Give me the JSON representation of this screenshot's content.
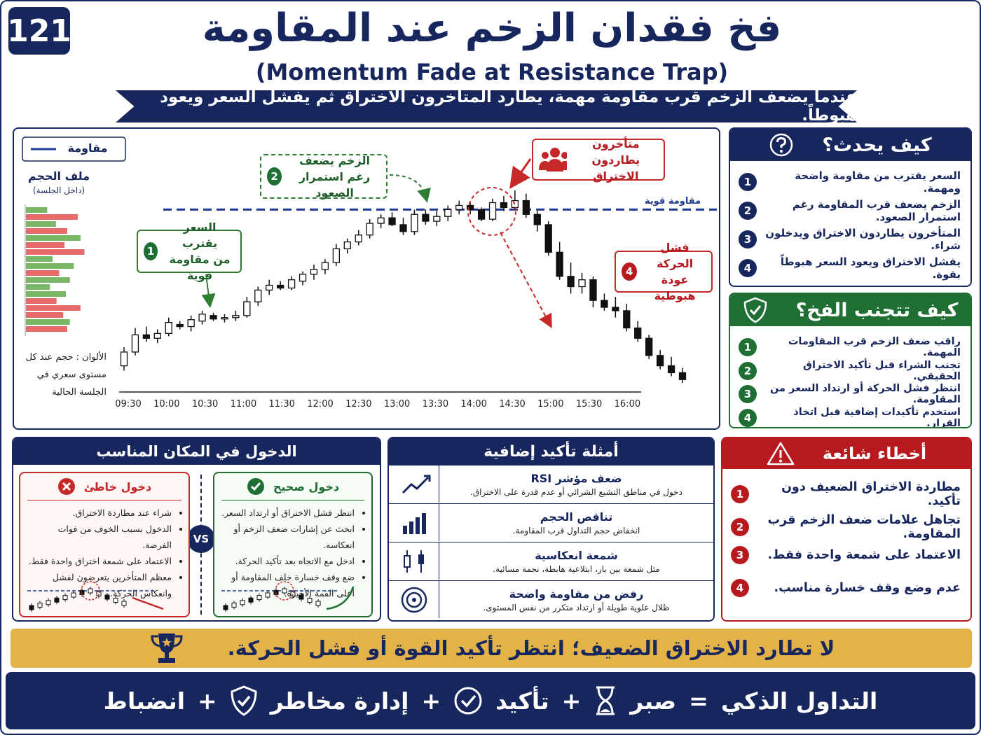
{
  "header": {
    "badge": "121",
    "title": "فخ فقدان الزخم عند المقاومة",
    "subtitle": "(Momentum Fade at Resistance Trap)",
    "ribbon": "عندما يضعف الزخم قرب مقاومة مهمة، يطارد المتأخرون الاختراق ثم يفشل السعر ويعود هبوطاً."
  },
  "chart": {
    "legend": "مقاومة",
    "volume_title": "ملف الحجم",
    "volume_subtitle": "(داخل الجلسة)",
    "colors_note": "الألوان : حجم عند كل مستوى سعري في الجلسة الحالية",
    "resistance_label": "مقاومة قوية",
    "resistance": 262,
    "ylim": [
      0,
      300
    ],
    "x_labels": [
      "09:30",
      "10:00",
      "10:30",
      "11:00",
      "11:30",
      "12:00",
      "12:30",
      "13:00",
      "13:30",
      "14:00",
      "14:30",
      "15:00",
      "15:30",
      "16:00"
    ],
    "candles": [
      [
        35,
        62,
        28,
        55
      ],
      [
        55,
        90,
        50,
        80
      ],
      [
        80,
        92,
        70,
        75
      ],
      [
        75,
        88,
        68,
        82
      ],
      [
        82,
        105,
        78,
        98
      ],
      [
        95,
        100,
        88,
        92
      ],
      [
        92,
        108,
        85,
        102
      ],
      [
        100,
        115,
        95,
        110
      ],
      [
        108,
        112,
        100,
        103
      ],
      [
        103,
        110,
        98,
        105
      ],
      [
        105,
        115,
        100,
        108
      ],
      [
        108,
        135,
        105,
        128
      ],
      [
        128,
        150,
        122,
        145
      ],
      [
        145,
        160,
        138,
        152
      ],
      [
        152,
        158,
        145,
        148
      ],
      [
        148,
        165,
        145,
        160
      ],
      [
        158,
        172,
        152,
        168
      ],
      [
        168,
        182,
        160,
        175
      ],
      [
        175,
        190,
        168,
        185
      ],
      [
        185,
        212,
        180,
        205
      ],
      [
        205,
        220,
        198,
        215
      ],
      [
        215,
        232,
        210,
        225
      ],
      [
        225,
        248,
        220,
        242
      ],
      [
        242,
        255,
        235,
        250
      ],
      [
        250,
        258,
        238,
        240
      ],
      [
        240,
        250,
        225,
        230
      ],
      [
        230,
        262,
        225,
        255
      ],
      [
        255,
        262,
        240,
        245
      ],
      [
        245,
        260,
        238,
        252
      ],
      [
        252,
        268,
        245,
        262
      ],
      [
        262,
        275,
        255,
        268
      ],
      [
        268,
        272,
        255,
        262
      ],
      [
        262,
        265,
        245,
        248
      ],
      [
        248,
        278,
        245,
        272
      ],
      [
        272,
        282,
        260,
        265
      ],
      [
        265,
        290,
        262,
        275
      ],
      [
        275,
        285,
        250,
        255
      ],
      [
        255,
        260,
        230,
        240
      ],
      [
        240,
        245,
        195,
        200
      ],
      [
        200,
        215,
        160,
        165
      ],
      [
        165,
        185,
        140,
        150
      ],
      [
        150,
        170,
        140,
        160
      ],
      [
        160,
        165,
        120,
        130
      ],
      [
        130,
        140,
        115,
        120
      ],
      [
        120,
        135,
        105,
        115
      ],
      [
        115,
        125,
        85,
        90
      ],
      [
        90,
        100,
        70,
        75
      ],
      [
        75,
        80,
        45,
        50
      ],
      [
        50,
        58,
        30,
        35
      ],
      [
        35,
        48,
        20,
        25
      ],
      [
        25,
        32,
        10,
        15
      ]
    ],
    "volume_profile": {
      "values": [
        32,
        78,
        45,
        62,
        82,
        58,
        88,
        40,
        72,
        50,
        66,
        36,
        60,
        46,
        82,
        56,
        66,
        62
      ],
      "colors": [
        "#7ab868",
        "#e86a6a",
        "#7ab868",
        "#e86a6a",
        "#7ab868",
        "#e86a6a",
        "#e86a6a",
        "#7ab868",
        "#7ab868",
        "#e86a6a",
        "#7ab868",
        "#7ab868",
        "#7ab868",
        "#e86a6a",
        "#e86a6a",
        "#e86a6a",
        "#7ab868",
        "#e86a6a"
      ]
    },
    "callouts": [
      {
        "num": 1,
        "lines": [
          "السعر يقترب",
          "من مقاومة قوية"
        ]
      },
      {
        "num": 2,
        "lines": [
          "الزخم يضعف",
          "رغم استمرار الصعود"
        ]
      },
      {
        "lines": [
          "متأخرون",
          "يطاردون الاختراق"
        ]
      },
      {
        "num": 4,
        "lines": [
          "فشل الحركة",
          "عودة هبوطية"
        ]
      }
    ]
  },
  "how": {
    "title": "كيف يحدث؟",
    "items": [
      {
        "num": 1,
        "text": "السعر يقترب من مقاومة واضحة ومهمة."
      },
      {
        "num": 2,
        "text": "الزخم يضعف قرب المقاومة رغم استمرار الصعود."
      },
      {
        "num": 3,
        "text": "المتأخرون يطاردون الاختراق ويدخلون شراء."
      },
      {
        "num": 4,
        "text": "يفشل الاختراق ويعود السعر هبوطاً بقوة."
      }
    ]
  },
  "avoid": {
    "title": "كيف تتجنب الفخ؟",
    "items": [
      {
        "num": 1,
        "text": "راقب ضعف الزخم قرب المقاومات المهمة."
      },
      {
        "num": 2,
        "text": "تجنب الشراء قبل تأكيد الاختراق الحقيقي."
      },
      {
        "num": 3,
        "text": "انتظر فشل الحركة أو ارتداد السعر من المقاومة."
      },
      {
        "num": 4,
        "text": "استخدم تأكيدات إضافية قبل اتخاذ القرار."
      }
    ]
  },
  "entry": {
    "title": "الدخول في المكان المناسب",
    "vs": "VS",
    "wrong": {
      "title": "دخول خاطئ",
      "bullets": [
        "شراء عند مطاردة الاختراق.",
        "الدخول بسبب الخوف من فوات الفرصة.",
        "الاعتماد على شمعة اختراق واحدة فقط.",
        "معظم المتأخرين يتعرضون لفشل وانعكاس الحركة."
      ]
    },
    "correct": {
      "title": "دخول صحيح",
      "bullets": [
        "انتظر فشل الاختراق أو ارتداد السعر.",
        "ابحث عن إشارات ضعف الزخم أو انعكاسه.",
        "ادخل مع الاتجاه بعد تأكيد الحركة.",
        "ضع وقف خسارة خلف المقاومة أو أعلى القمة الأخيرة."
      ]
    }
  },
  "confirm": {
    "title": "أمثلة تأكيد إضافية",
    "rows": [
      {
        "title": "ضعف مؤشر RSI",
        "text": "دخول في مناطق التشبع الشرائي أو عدم قدرة على الاختراق."
      },
      {
        "title": "تناقص الحجم",
        "text": "انخفاض حجم التداول قرب المقاومة."
      },
      {
        "title": "شمعة انعكاسية",
        "text": "مثل شمعة بين بار، ابتلاعية هابطة، نجمة مسائية."
      },
      {
        "title": "رفض من مقاومة واضحة",
        "text": "ظلال علوية طويلة أو ارتداد متكرر من نفس المستوى."
      }
    ]
  },
  "mistakes": {
    "title": "أخطاء شائعة",
    "items": [
      {
        "num": 1,
        "text": "مطاردة الاختراق الضعيف دون تأكيد."
      },
      {
        "num": 2,
        "text": "تجاهل علامات ضعف الزخم قرب المقاومة."
      },
      {
        "num": 3,
        "text": "الاعتماد على شمعة واحدة فقط."
      },
      {
        "num": 4,
        "text": "عدم وضع وقف خسارة مناسب."
      }
    ]
  },
  "banner": "لا تطارد الاختراق الضعيف؛ انتظر تأكيد القوة أو فشل الحركة.",
  "footer": {
    "parts": [
      "التداول الذكي",
      "=",
      "صبر",
      "+",
      "تأكيد",
      "+",
      "إدارة مخاطر",
      "+",
      "انضباط"
    ]
  }
}
